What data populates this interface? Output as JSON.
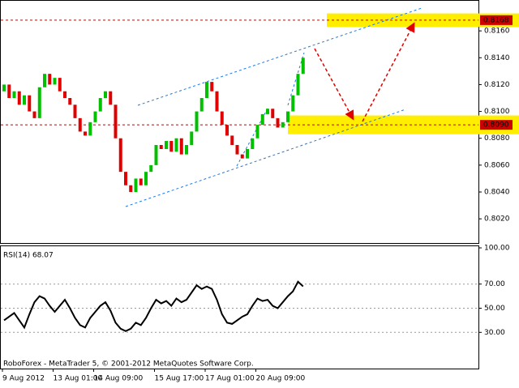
{
  "chart_data": [
    {
      "type": "candlestick",
      "open": [
        0.8115,
        0.812,
        0.811,
        0.8115,
        0.8105,
        0.8112,
        0.81,
        0.8095,
        0.8118,
        0.8128,
        0.812,
        0.8125,
        0.8115,
        0.811,
        0.8105,
        0.8095,
        0.8085,
        0.8082,
        0.8092,
        0.81,
        0.811,
        0.8115,
        0.8105,
        0.808,
        0.8055,
        0.8045,
        0.804,
        0.805,
        0.8045,
        0.8055,
        0.806,
        0.8075,
        0.8072,
        0.8078,
        0.807,
        0.808,
        0.8068,
        0.8075,
        0.8085,
        0.81,
        0.811,
        0.8122,
        0.8115,
        0.81,
        0.809,
        0.8082,
        0.8075,
        0.8068,
        0.8065,
        0.8072,
        0.808,
        0.809,
        0.8098,
        0.8102,
        0.8095,
        0.8088,
        0.8092,
        0.81,
        0.8112,
        0.8128
      ],
      "close": [
        0.812,
        0.811,
        0.8115,
        0.8105,
        0.8112,
        0.81,
        0.8095,
        0.8118,
        0.8128,
        0.812,
        0.8125,
        0.8115,
        0.811,
        0.8105,
        0.8095,
        0.8085,
        0.8082,
        0.8092,
        0.81,
        0.811,
        0.8115,
        0.8105,
        0.808,
        0.8055,
        0.8045,
        0.804,
        0.805,
        0.8045,
        0.8055,
        0.806,
        0.8075,
        0.8072,
        0.8078,
        0.807,
        0.808,
        0.8068,
        0.8075,
        0.8085,
        0.81,
        0.811,
        0.8122,
        0.8115,
        0.81,
        0.809,
        0.8082,
        0.8075,
        0.8068,
        0.8065,
        0.8072,
        0.808,
        0.809,
        0.8098,
        0.8102,
        0.8095,
        0.8088,
        0.8092,
        0.81,
        0.8112,
        0.8128,
        0.814
      ],
      "up_color": "#00c000",
      "down_color": "#e00000",
      "ylim": [
        0.8002,
        0.8183
      ],
      "yticks": [
        {
          "value": 0.802,
          "label": "0.8020"
        },
        {
          "value": 0.804,
          "label": "0.8040"
        },
        {
          "value": 0.806,
          "label": "0.8060"
        },
        {
          "value": 0.808,
          "label": "0.8080"
        },
        {
          "value": 0.81,
          "label": "0.8100"
        },
        {
          "value": 0.812,
          "label": "0.8120"
        },
        {
          "value": 0.814,
          "label": "0.8140"
        },
        {
          "value": 0.816,
          "label": "0.8160"
        }
      ],
      "levels": [
        {
          "value": 0.8168,
          "label": "0.8168"
        },
        {
          "value": 0.809,
          "label": "0.8090"
        }
      ],
      "level_color": "#cc0000",
      "zones": [
        [
          0.8163,
          0.8173
        ],
        [
          0.8083,
          0.8097
        ]
      ],
      "zone_color": "#ffee00"
    },
    {
      "type": "line",
      "title": "RSI(14) 68.07",
      "color": "#000000",
      "categories": [
        "9 Aug 2012",
        null,
        null,
        null,
        null,
        null,
        null,
        null,
        null,
        null,
        "13 Aug 01:00",
        null,
        null,
        null,
        null,
        null,
        null,
        null,
        "14 Aug 09:00",
        null,
        null,
        null,
        null,
        null,
        null,
        null,
        null,
        null,
        null,
        null,
        "15 Aug 17:00",
        null,
        null,
        null,
        null,
        null,
        null,
        null,
        null,
        null,
        "17 Aug 01:00",
        null,
        null,
        null,
        null,
        null,
        null,
        null,
        null,
        null,
        "20 Aug 09:00",
        null,
        null,
        null,
        null,
        null,
        null,
        null,
        null,
        null
      ],
      "values": [
        40,
        43,
        46,
        40,
        34,
        45,
        55,
        60,
        58,
        52,
        47,
        52,
        57,
        50,
        42,
        36,
        34,
        42,
        47,
        52,
        55,
        48,
        38,
        33,
        31,
        33,
        38,
        36,
        42,
        50,
        57,
        54,
        56,
        52,
        58,
        55,
        57,
        63,
        69,
        66,
        68,
        66,
        57,
        45,
        38,
        37,
        40,
        43,
        45,
        52,
        58,
        56,
        57,
        52,
        50,
        55,
        60,
        64,
        72,
        68.07
      ],
      "ylim": [
        0,
        100
      ],
      "yticks": [
        {
          "value": 100,
          "label": "100.00"
        },
        {
          "value": 70,
          "label": "70.00"
        },
        {
          "value": 50,
          "label": "50.00"
        },
        {
          "value": 30,
          "label": "30.00"
        }
      ],
      "grid_values": [
        70,
        50,
        30
      ],
      "watermark": "RoboForex - MetaTrader 5, © 2001-2012 MetaQuotes Software Corp."
    }
  ]
}
